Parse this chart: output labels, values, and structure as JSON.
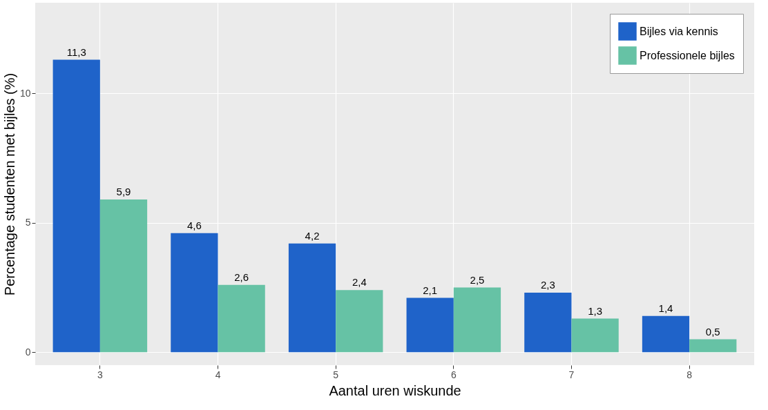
{
  "chart_data": {
    "type": "bar",
    "xlabel": "Aantal uren wiskunde",
    "ylabel": "Percentage studenten met bijles (%)",
    "categories": [
      "3",
      "4",
      "5",
      "6",
      "7",
      "8"
    ],
    "series": [
      {
        "name": "Bijles via kennis",
        "color": "#1f63c9",
        "values": [
          11.3,
          4.6,
          4.2,
          2.1,
          2.3,
          1.4
        ],
        "value_labels": [
          "11,3",
          "4,6",
          "4,2",
          "2,1",
          "2,3",
          "1,4"
        ]
      },
      {
        "name": "Professionele bijles",
        "color": "#66c2a5",
        "values": [
          5.9,
          2.6,
          2.4,
          2.5,
          1.3,
          0.5
        ],
        "value_labels": [
          "5,9",
          "2,6",
          "2,4",
          "2,5",
          "1,3",
          "0,5"
        ]
      }
    ],
    "ylim": [
      -0.5,
      13.5
    ],
    "yticks": [
      0,
      5,
      10
    ],
    "grid": true,
    "legend": "top right"
  }
}
